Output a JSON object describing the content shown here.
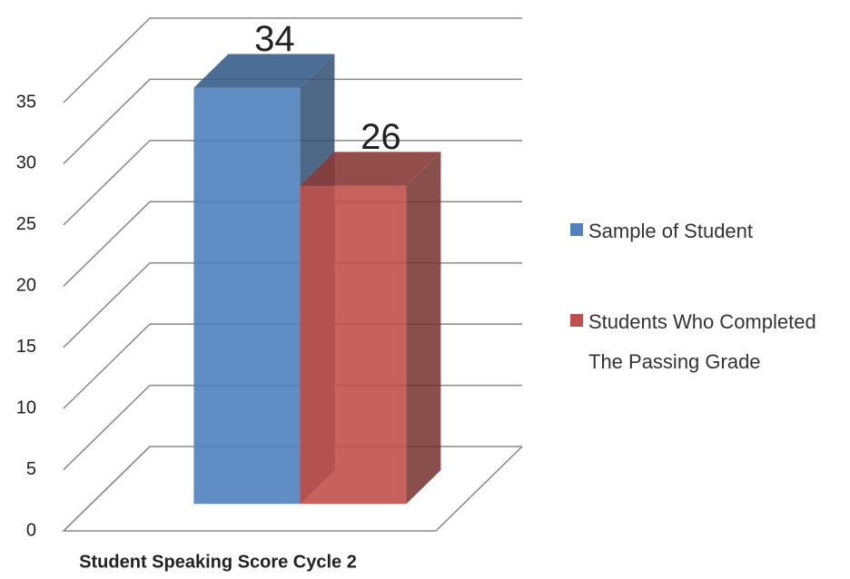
{
  "chart_data": {
    "type": "bar3d",
    "categories": [
      "Student Speaking Score Cycle 2"
    ],
    "series": [
      {
        "name": "Sample of Student",
        "color": "#4f81bd",
        "values": [
          34
        ]
      },
      {
        "name": "Students Who Completed The Passing Grade",
        "color": "#c0504d",
        "values": [
          26
        ]
      }
    ],
    "ylim": [
      0,
      35
    ],
    "yticks": [
      0,
      5,
      10,
      15,
      20,
      25,
      30,
      35
    ],
    "grid": true,
    "legend": "right"
  }
}
